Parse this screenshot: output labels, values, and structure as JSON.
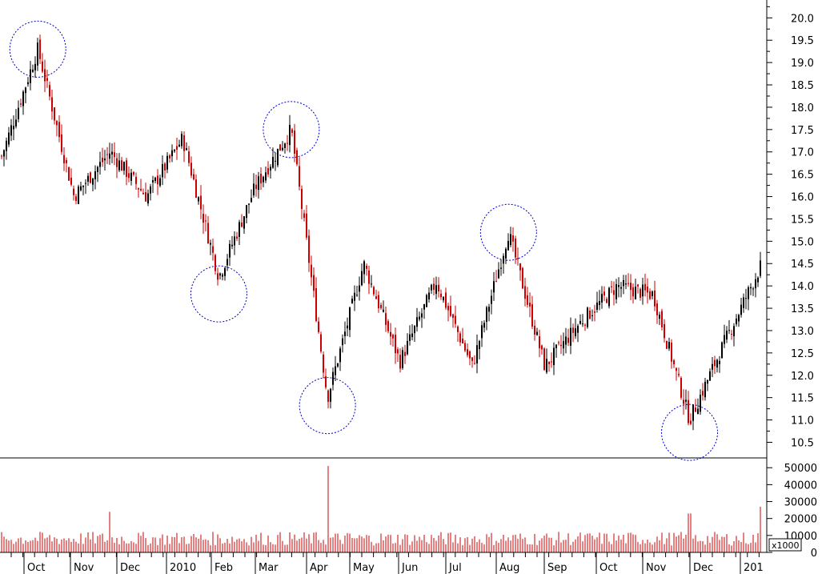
{
  "chart_data": [
    {
      "type": "candlestick",
      "title": "",
      "xlabel": "",
      "ylabel": "",
      "ylim": [
        10.15,
        20.4
      ],
      "price_ticks": [
        "10.5",
        "11.0",
        "11.5",
        "12.0",
        "12.5",
        "13.0",
        "13.5",
        "14.0",
        "14.5",
        "15.0",
        "15.5",
        "16.0",
        "16.5",
        "17.0",
        "17.5",
        "18.0",
        "18.5",
        "19.0",
        "19.5",
        "20.0"
      ],
      "month_labels": [
        "Oct",
        "Nov",
        "Dec",
        "2010",
        "Feb",
        "Mar",
        "Apr",
        "May",
        "Jun",
        "Jul",
        "Aug",
        "Sep",
        "Oct",
        "Nov",
        "Dec",
        "201"
      ],
      "up_color": "#000000",
      "down_color": "#cc0000",
      "highlight_color": "#0000cc",
      "approx_close_path": [
        {
          "x": "Sep 2009",
          "close": 16.9
        },
        {
          "x": "early Oct 2009",
          "close": 19.3
        },
        {
          "x": "late Oct 2009",
          "close": 16.0
        },
        {
          "x": "Nov 2009",
          "close": 17.0
        },
        {
          "x": "Dec 2009",
          "close": 16.0
        },
        {
          "x": "Jan 2010",
          "close": 17.3
        },
        {
          "x": "early Feb 2010",
          "close": 14.2
        },
        {
          "x": "Mar 2010",
          "close": 16.2
        },
        {
          "x": "mid Apr 2010",
          "close": 17.5
        },
        {
          "x": "early May 2010",
          "close": 11.5
        },
        {
          "x": "mid May 2010",
          "close": 14.5
        },
        {
          "x": "Jun 2010",
          "close": 12.3
        },
        {
          "x": "late Jun 2010",
          "close": 14.1
        },
        {
          "x": "Jul 2010",
          "close": 12.2
        },
        {
          "x": "early Aug 2010",
          "close": 15.2
        },
        {
          "x": "late Aug 2010",
          "close": 12.2
        },
        {
          "x": "Sep 2010",
          "close": 13.2
        },
        {
          "x": "early Oct 2010",
          "close": 14.0
        },
        {
          "x": "Nov 2010",
          "close": 13.8
        },
        {
          "x": "early Dec 2010",
          "close": 11.0
        },
        {
          "x": "late Dec 2010",
          "close": 12.8
        },
        {
          "x": "Jan 2011",
          "close": 14.5
        }
      ],
      "highlighted_extremes": [
        {
          "x": "early Oct 2009",
          "kind": "peak",
          "price": 19.3
        },
        {
          "x": "early Feb 2010",
          "kind": "trough",
          "price": 14.0
        },
        {
          "x": "mid Apr 2010",
          "kind": "peak",
          "price": 17.5
        },
        {
          "x": "early May 2010",
          "kind": "trough",
          "price": 11.5
        },
        {
          "x": "early Aug 2010",
          "kind": "peak",
          "price": 15.2
        },
        {
          "x": "early Dec 2010",
          "kind": "trough",
          "price": 10.9
        }
      ]
    },
    {
      "type": "bar",
      "title": "",
      "xlabel": "",
      "ylabel": "",
      "ylim": [
        0,
        52000
      ],
      "volume_ticks": [
        "0",
        "10000",
        "20000",
        "30000",
        "40000",
        "50000"
      ],
      "volume_multiplier_label": "x1000",
      "bar_color": "#cc0000",
      "approx_volume_notes": [
        {
          "x": "typical",
          "value": 9000
        },
        {
          "x": "early May 2010",
          "value": 51000
        },
        {
          "x": "mid Nov 2009",
          "value": 24000
        },
        {
          "x": "early Dec 2010",
          "value": 23000
        },
        {
          "x": "Jan 2011",
          "value": 27000
        }
      ]
    }
  ]
}
